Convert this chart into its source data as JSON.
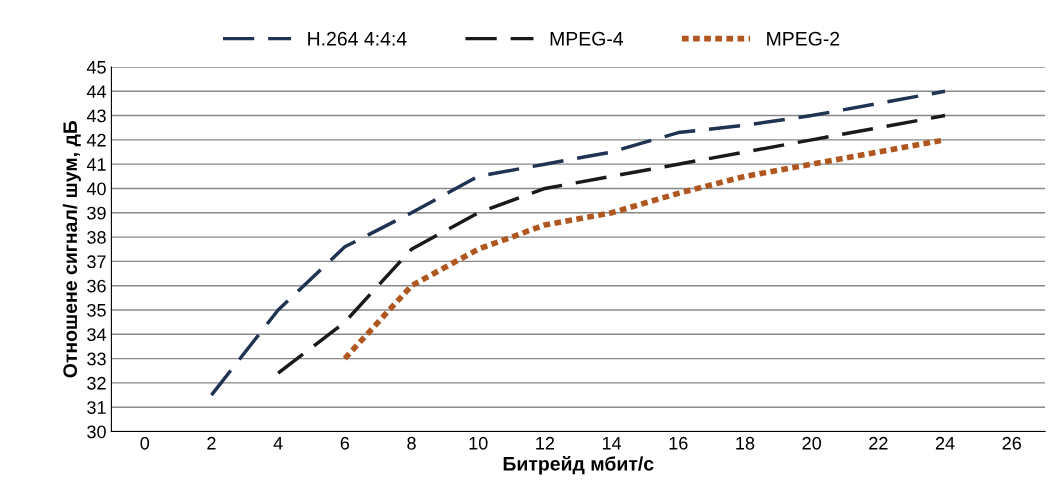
{
  "chart_data": {
    "type": "line",
    "xlabel": "Битрейд мбит/с",
    "ylabel": "Отношене сигнал/ шум, дБ",
    "xlim": [
      -1,
      27
    ],
    "xticks": [
      0,
      2,
      4,
      6,
      8,
      10,
      12,
      14,
      16,
      18,
      20,
      22,
      24,
      26
    ],
    "ylim": [
      30,
      45
    ],
    "yticks": [
      30,
      31,
      32,
      33,
      34,
      35,
      36,
      37,
      38,
      39,
      40,
      41,
      42,
      43,
      44,
      45
    ],
    "grid": "y",
    "legend": "top",
    "marker": "none",
    "series": [
      {
        "name": "H.264 4:4:4",
        "color": "#1f3352",
        "line_style": "dashed",
        "x": [
          2,
          4,
          6,
          8,
          10,
          12,
          14,
          16,
          18,
          20,
          22,
          24
        ],
        "values": [
          31.5,
          35,
          37.6,
          39,
          40.5,
          41,
          41.5,
          42.3,
          42.6,
          43,
          43.5,
          44
        ]
      },
      {
        "name": "MPEG-4",
        "color": "#1a1a1a",
        "line_style": "dashed",
        "x": [
          4,
          6,
          8,
          10,
          12,
          14,
          16,
          18,
          20,
          22,
          24
        ],
        "values": [
          32.4,
          34.5,
          37.5,
          39,
          40,
          40.5,
          41,
          41.5,
          42,
          42.5,
          43
        ]
      },
      {
        "name": "MPEG-2",
        "color": "#b0561f",
        "line_style": "dotted",
        "x": [
          6,
          8,
          10,
          12,
          14,
          16,
          18,
          20,
          22,
          24
        ],
        "values": [
          33,
          36,
          37.5,
          38.5,
          39,
          39.8,
          40.5,
          41,
          41.5,
          42
        ]
      }
    ]
  }
}
